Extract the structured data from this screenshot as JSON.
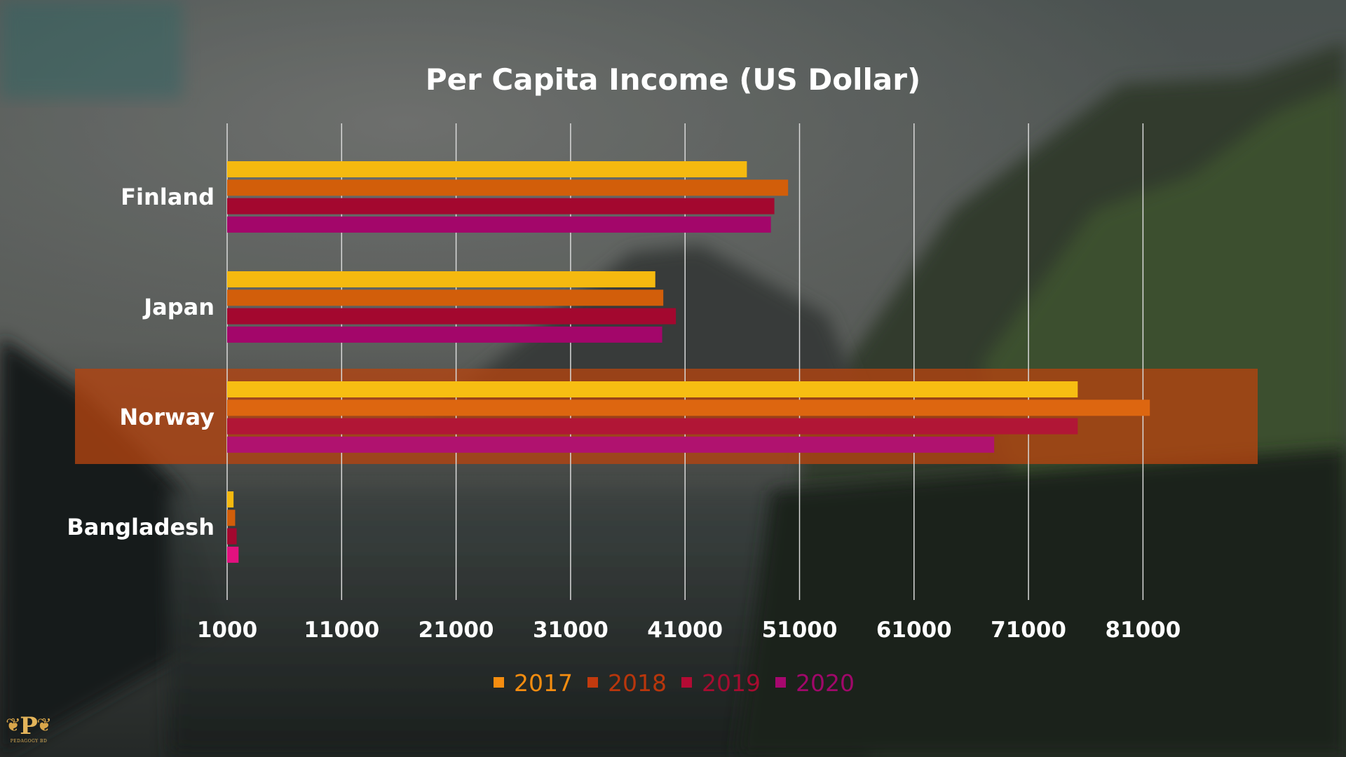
{
  "chart_data": {
    "type": "bar",
    "orientation": "horizontal",
    "title": "Per Capita Income (US Dollar)",
    "xlabel": "",
    "ylabel": "",
    "categories": [
      "Finland",
      "Japan",
      "Norway",
      "Bangladesh"
    ],
    "series": [
      {
        "name": "2017",
        "color": "#f5b90f",
        "values": [
          46400,
          38400,
          75300,
          1560
        ]
      },
      {
        "name": "2018",
        "color": "#d25e0a",
        "values": [
          50000,
          39100,
          81600,
          1700
        ]
      },
      {
        "name": "2019",
        "color": "#a3082f",
        "values": [
          48800,
          40200,
          75300,
          1830
        ]
      },
      {
        "name": "2020",
        "color": "#a3066a",
        "values": [
          48500,
          39000,
          68000,
          2000
        ]
      }
    ],
    "x_ticks": [
      "1000",
      "11000",
      "21000",
      "31000",
      "41000",
      "51000",
      "61000",
      "71000",
      "81000"
    ],
    "xlim": [
      1000,
      91000
    ],
    "grid": "vertical",
    "legend_position": "bottom",
    "highlighted_category": "Norway",
    "highlight_color": "#b54410",
    "bangladesh_2020_color": "#e2117f"
  },
  "logo": {
    "letter": "P",
    "caption": "PEDAGOGY BD"
  }
}
